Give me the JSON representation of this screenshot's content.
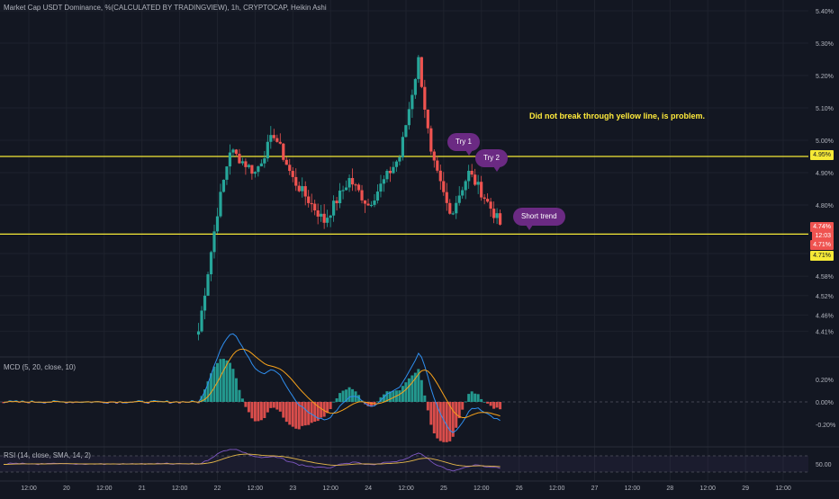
{
  "header": {
    "title": "Market Cap USDT Dominance, %(CALCULATED BY TRADINGVIEW), 1h, CRYPTOCAP, Heikin Ashi"
  },
  "annotations": {
    "note": "Did not break through yellow line, is problem.",
    "try1": "Try 1",
    "try2": "Try 2",
    "short_trend": "Short trend"
  },
  "price_tags": {
    "yellow_top": "4.95%",
    "current": "4.74%",
    "countdown": "12:03",
    "prev": "4.71%",
    "yellow_bottom": "4.71%"
  },
  "macd_legend": "MCD (5, 20, close, 10)",
  "rsi_legend": "RSI (14, close, SMA, 14, 2)",
  "colors": {
    "background": "#131722",
    "up": "#26a69a",
    "down": "#ef5350",
    "yellow": "#f5e936",
    "annotation": "#6b2a83",
    "macd_line": "#2f8ff0",
    "signal_line": "#f7a21b",
    "rsi_line": "#7e57c2",
    "rsi_ma": "#e6b84a"
  },
  "chart_data": [
    {
      "type": "candlestick",
      "subtype": "heikin_ashi",
      "timeframe": "1h",
      "y_axis_ticks": [
        "5.40%",
        "5.30%",
        "5.20%",
        "5.10%",
        "5.00%",
        "4.90%",
        "4.80%",
        "4.71%",
        "4.65%",
        "4.58%",
        "4.52%",
        "4.46%",
        "4.41%"
      ],
      "x_axis_ticks": [
        "12:00",
        "20",
        "12:00",
        "21",
        "12:00",
        "22",
        "12:00",
        "23",
        "12:00",
        "24",
        "12:00",
        "25",
        "12:00",
        "26",
        "12:00",
        "27",
        "12:00",
        "28",
        "12:00",
        "29",
        "12:00"
      ],
      "horizontal_lines": [
        4.95,
        4.71
      ],
      "ohlc_approx_waypoints": [
        {
          "x": "21 18:00",
          "y": 4.41
        },
        {
          "x": "22 00:00",
          "y": 4.78
        },
        {
          "x": "22 04:00",
          "y": 4.97
        },
        {
          "x": "22 12:00",
          "y": 4.9
        },
        {
          "x": "22 18:00",
          "y": 5.02
        },
        {
          "x": "23 00:00",
          "y": 4.88
        },
        {
          "x": "23 10:00",
          "y": 4.75
        },
        {
          "x": "23 18:00",
          "y": 4.88
        },
        {
          "x": "24 00:00",
          "y": 4.8
        },
        {
          "x": "24 10:00",
          "y": 4.95
        },
        {
          "x": "24 16:00",
          "y": 5.25
        },
        {
          "x": "24 20:00",
          "y": 4.95
        },
        {
          "x": "25 02:00",
          "y": 4.77
        },
        {
          "x": "25 08:00",
          "y": 4.9
        },
        {
          "x": "25 12:00",
          "y": 4.84
        },
        {
          "x": "25 18:00",
          "y": 4.74
        }
      ]
    },
    {
      "type": "line",
      "name": "MCD (5, 20, close, 10)",
      "y_axis_ticks": [
        "0.20%",
        "0.00%",
        "-0.20%"
      ]
    },
    {
      "type": "line",
      "name": "RSI (14, close, SMA, 14, 2)",
      "y_axis_ticks": [
        "50.00"
      ]
    }
  ]
}
